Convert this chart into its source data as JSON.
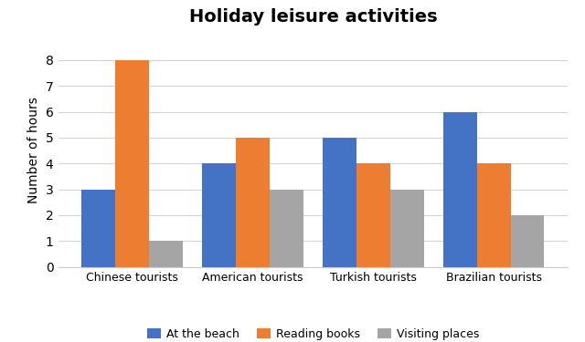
{
  "title": "Holiday leisure activities",
  "ylabel": "Number of hours",
  "categories": [
    "Chinese tourists",
    "American tourists",
    "Turkish tourists",
    "Brazilian tourists"
  ],
  "series": {
    "At the beach": [
      3,
      4,
      5,
      6
    ],
    "Reading books": [
      8,
      5,
      4,
      4
    ],
    "Visiting places": [
      1,
      3,
      3,
      2
    ]
  },
  "colors": {
    "At the beach": "#4472C4",
    "Reading books": "#ED7D31",
    "Visiting places": "#A5A5A5"
  },
  "ylim": [
    0,
    9
  ],
  "yticks": [
    0,
    1,
    2,
    3,
    4,
    5,
    6,
    7,
    8
  ],
  "bar_width": 0.28,
  "title_fontsize": 14,
  "title_fontweight": "bold",
  "axis_label_fontsize": 10,
  "tick_label_fontsize": 9,
  "legend_fontsize": 9,
  "background_color": "#FFFFFF",
  "grid_color": "#D3D3D3"
}
